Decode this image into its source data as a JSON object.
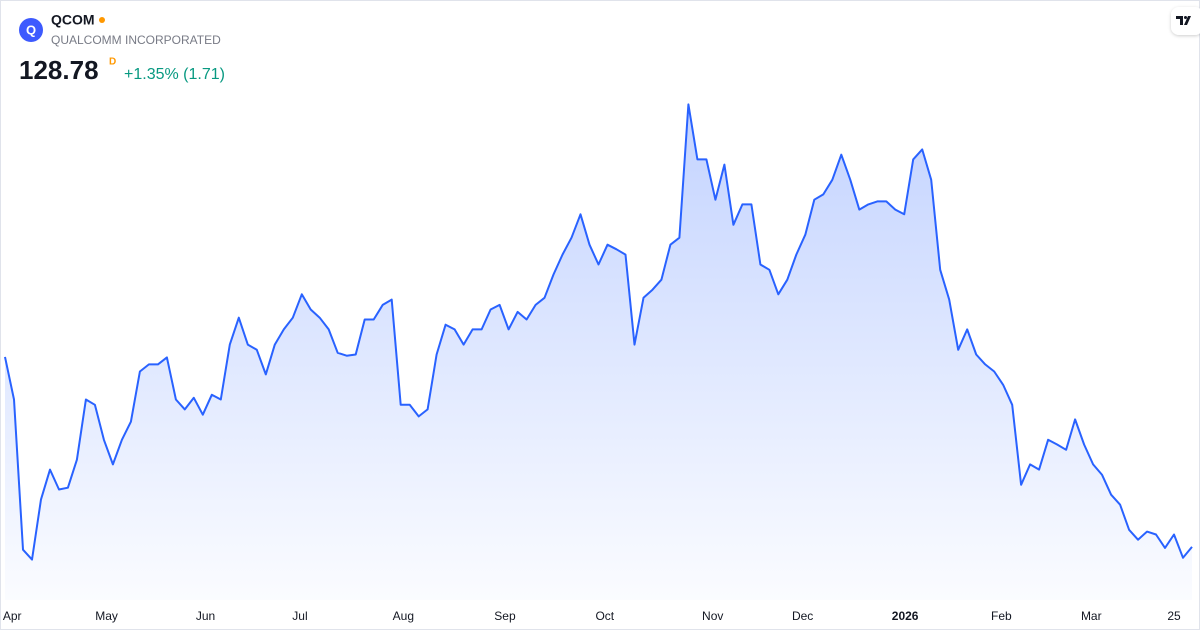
{
  "header": {
    "logo": "Q",
    "symbol": "QCOM",
    "name": "QUALCOMM INCORPORATED",
    "price": "128.78",
    "interval": "D",
    "change": "+1.35% (1.71)"
  },
  "chart_data": {
    "type": "area",
    "color": "#2962ff",
    "values": [
      161.3,
      154.0,
      128.3,
      126.6,
      136.9,
      142.0,
      138.6,
      138.9,
      143.7,
      154.0,
      153.1,
      147.1,
      142.9,
      147.1,
      150.2,
      158.8,
      160.0,
      160.0,
      161.2,
      154.0,
      152.3,
      154.3,
      151.4,
      154.8,
      154.0,
      163.4,
      168.0,
      163.4,
      162.5,
      158.3,
      163.4,
      166.0,
      168.0,
      172.0,
      169.4,
      168.0,
      166.0,
      162.0,
      161.5,
      161.7,
      167.7,
      167.7,
      170.2,
      171.1,
      153.1,
      153.1,
      151.1,
      152.3,
      161.7,
      166.8,
      166.0,
      163.4,
      166.0,
      166.0,
      169.4,
      170.2,
      166.0,
      169.0,
      167.7,
      170.2,
      171.4,
      175.4,
      178.8,
      181.7,
      185.7,
      180.5,
      177.1,
      180.5,
      179.7,
      178.8,
      163.4,
      171.4,
      172.8,
      174.5,
      180.5,
      181.7,
      204.5,
      195.1,
      195.1,
      188.2,
      194.2,
      183.9,
      187.4,
      187.4,
      177.1,
      176.2,
      172.0,
      174.5,
      178.8,
      182.2,
      188.2,
      189.1,
      191.6,
      195.9,
      191.6,
      186.5,
      187.4,
      187.9,
      187.9,
      186.5,
      185.7,
      195.1,
      196.8,
      191.6,
      176.2,
      171.1,
      162.5,
      166.0,
      161.7,
      160.0,
      158.8,
      156.5,
      153.1,
      139.4,
      142.9,
      142.0,
      147.1,
      146.3,
      145.4,
      150.6,
      146.3,
      142.9,
      141.1,
      137.7,
      136.0,
      131.7,
      130.0,
      131.4,
      130.9,
      128.6,
      130.9,
      126.9,
      128.78
    ],
    "xlim": [
      0,
      132
    ],
    "xticks": [
      {
        "value": 0.8,
        "label": "Apr"
      },
      {
        "value": 11.3,
        "label": "May"
      },
      {
        "value": 22.3,
        "label": "Jun"
      },
      {
        "value": 32.8,
        "label": "Jul"
      },
      {
        "value": 44.3,
        "label": "Aug"
      },
      {
        "value": 55.6,
        "label": "Sep"
      },
      {
        "value": 66.7,
        "label": "Oct"
      },
      {
        "value": 78.7,
        "label": "Nov"
      },
      {
        "value": 88.7,
        "label": "Dec"
      },
      {
        "value": 100.1,
        "label": "2026"
      },
      {
        "value": 110.8,
        "label": "Feb"
      },
      {
        "value": 120.8,
        "label": "Mar"
      },
      {
        "value": 130.0,
        "label": "25"
      }
    ],
    "ylim": [
      119,
      208
    ]
  }
}
